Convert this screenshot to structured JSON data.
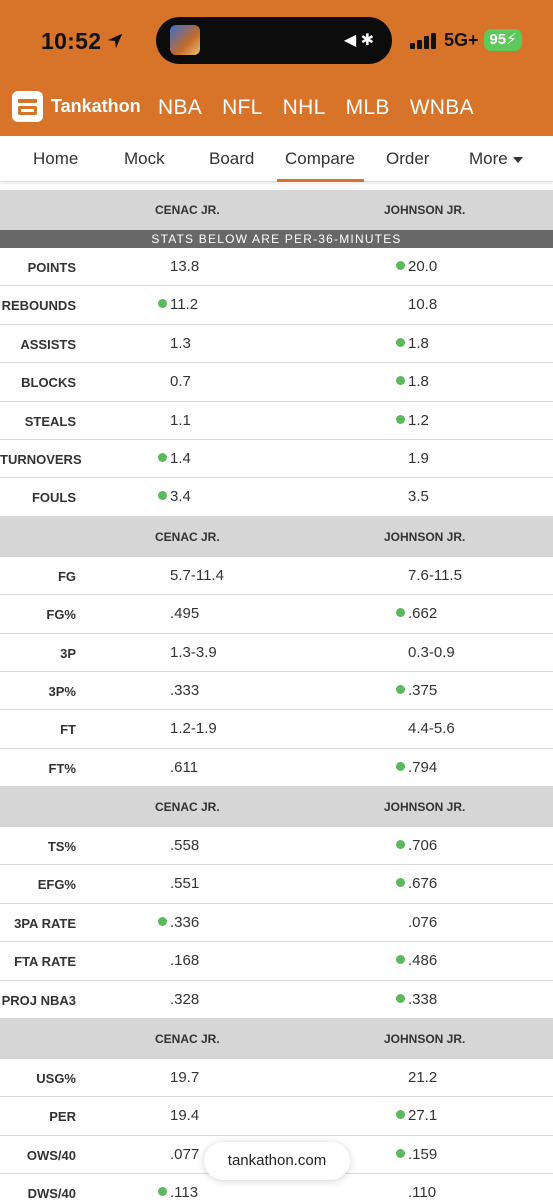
{
  "status_bar": {
    "time": "10:52",
    "network": "5G+",
    "battery": "95"
  },
  "brand": {
    "name": "Tankathon"
  },
  "leagues": [
    "NBA",
    "NFL",
    "NHL",
    "MLB",
    "WNBA"
  ],
  "tabs": [
    {
      "label": "Home"
    },
    {
      "label": "Mock"
    },
    {
      "label": "Board"
    },
    {
      "label": "Compare",
      "active": true
    },
    {
      "label": "Order"
    },
    {
      "label": "More"
    }
  ],
  "players": {
    "a": "CENAC JR.",
    "b": "JOHNSON JR."
  },
  "banner": "STATS BELOW ARE PER-36-MINUTES",
  "sections": [
    {
      "rows": [
        {
          "label": "POINTS",
          "a": "13.8",
          "b": "20.0",
          "better": "b"
        },
        {
          "label": "REBOUNDS",
          "a": "11.2",
          "b": "10.8",
          "better": "a"
        },
        {
          "label": "ASSISTS",
          "a": "1.3",
          "b": "1.8",
          "better": "b"
        },
        {
          "label": "BLOCKS",
          "a": "0.7",
          "b": "1.8",
          "better": "b"
        },
        {
          "label": "STEALS",
          "a": "1.1",
          "b": "1.2",
          "better": "b"
        },
        {
          "label": "TURNOVERS",
          "a": "1.4",
          "b": "1.9",
          "better": "a"
        },
        {
          "label": "FOULS",
          "a": "3.4",
          "b": "3.5",
          "better": "a"
        }
      ]
    },
    {
      "rows": [
        {
          "label": "FG",
          "a": "5.7-11.4",
          "b": "7.6-11.5",
          "better": ""
        },
        {
          "label": "FG%",
          "a": ".495",
          "b": ".662",
          "better": "b"
        },
        {
          "label": "3P",
          "a": "1.3-3.9",
          "b": "0.3-0.9",
          "better": ""
        },
        {
          "label": "3P%",
          "a": ".333",
          "b": ".375",
          "better": "b"
        },
        {
          "label": "FT",
          "a": "1.2-1.9",
          "b": "4.4-5.6",
          "better": ""
        },
        {
          "label": "FT%",
          "a": ".611",
          "b": ".794",
          "better": "b"
        }
      ]
    },
    {
      "rows": [
        {
          "label": "TS%",
          "a": ".558",
          "b": ".706",
          "better": "b"
        },
        {
          "label": "EFG%",
          "a": ".551",
          "b": ".676",
          "better": "b"
        },
        {
          "label": "3PA RATE",
          "a": ".336",
          "b": ".076",
          "better": "a"
        },
        {
          "label": "FTA RATE",
          "a": ".168",
          "b": ".486",
          "better": "b"
        },
        {
          "label": "PROJ NBA3",
          "a": ".328",
          "b": ".338",
          "better": "b"
        }
      ]
    },
    {
      "rows": [
        {
          "label": "USG%",
          "a": "19.7",
          "b": "21.2",
          "better": ""
        },
        {
          "label": "PER",
          "a": "19.4",
          "b": "27.1",
          "better": "b"
        },
        {
          "label": "OWS/40",
          "a": ".077",
          "b": ".159",
          "better": "b"
        },
        {
          "label": "DWS/40",
          "a": ".113",
          "b": ".110",
          "better": "a"
        }
      ]
    }
  ],
  "url": "tankathon.com"
}
